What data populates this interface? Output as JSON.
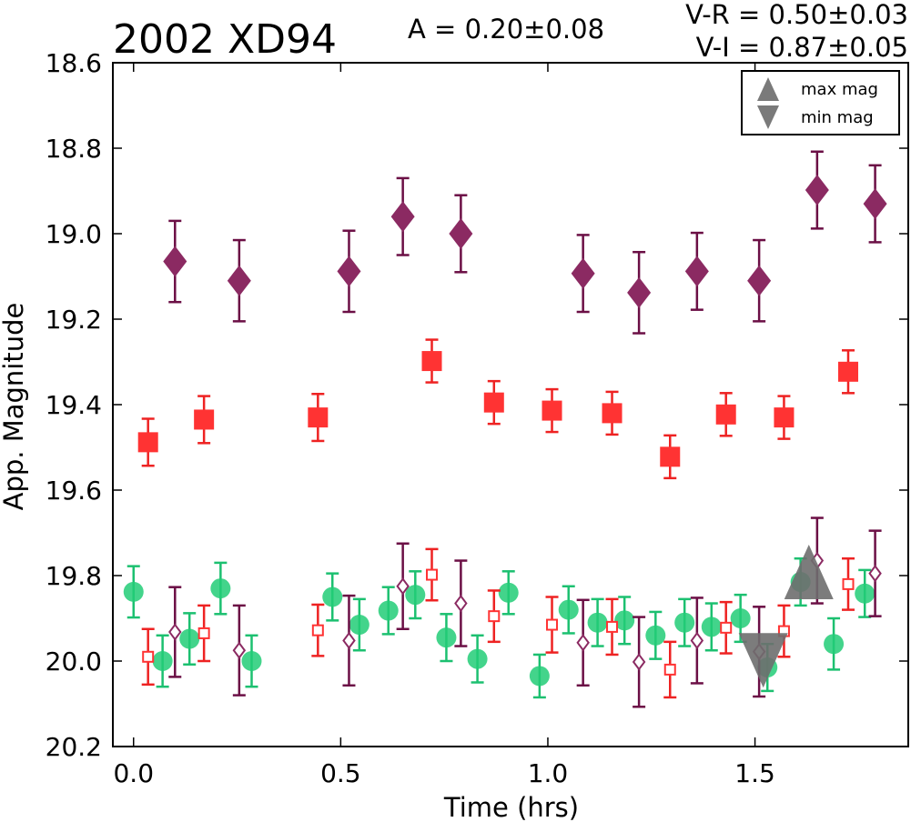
{
  "chart_data": {
    "type": "scatter",
    "title": "2002 XD94",
    "annotations": {
      "amplitude": "A  = 0.20±0.08",
      "v_r": "V-R = 0.50±0.03",
      "v_i": "V-I  = 0.87±0.05"
    },
    "xlabel": "Time (hrs)",
    "ylabel": "App. Magnitude",
    "xlim": [
      -0.05,
      1.87
    ],
    "ylim": [
      20.2,
      18.6
    ],
    "y_inverted": true,
    "x_ticks": [
      "0.0",
      "0.5",
      "1.0",
      "1.5"
    ],
    "x_tick_values": [
      0.0,
      0.5,
      1.0,
      1.5
    ],
    "y_ticks": [
      "18.6",
      "18.8",
      "19.0",
      "19.2",
      "19.4",
      "19.6",
      "19.8",
      "20.0",
      "20.2"
    ],
    "y_tick_values": [
      18.6,
      18.8,
      19.0,
      19.2,
      19.4,
      19.6,
      19.8,
      20.0,
      20.2
    ],
    "grid": false,
    "legend": {
      "placement": "top-right",
      "entries": [
        {
          "label": "max mag",
          "marker": "triangle-up"
        },
        {
          "label": "min mag",
          "marker": "triangle-down"
        }
      ]
    },
    "series": [
      {
        "marker": "diamond-filled",
        "color": "#8b2a62",
        "errcolor": "#6b0f45",
        "points": [
          {
            "x": 0.1,
            "y": 19.065,
            "err": 0.095
          },
          {
            "x": 0.255,
            "y": 19.11,
            "err": 0.095
          },
          {
            "x": 0.52,
            "y": 19.088,
            "err": 0.095
          },
          {
            "x": 0.65,
            "y": 18.96,
            "err": 0.09
          },
          {
            "x": 0.79,
            "y": 19.0,
            "err": 0.09
          },
          {
            "x": 1.085,
            "y": 19.093,
            "err": 0.09
          },
          {
            "x": 1.22,
            "y": 19.138,
            "err": 0.095
          },
          {
            "x": 1.36,
            "y": 19.088,
            "err": 0.09
          },
          {
            "x": 1.51,
            "y": 19.11,
            "err": 0.095
          },
          {
            "x": 1.65,
            "y": 18.898,
            "err": 0.09
          },
          {
            "x": 1.79,
            "y": 18.93,
            "err": 0.09
          }
        ]
      },
      {
        "marker": "square-filled",
        "color": "#ff3333",
        "errcolor": "#ee2222",
        "points": [
          {
            "x": 0.035,
            "y": 19.488,
            "err": 0.055
          },
          {
            "x": 0.17,
            "y": 19.435,
            "err": 0.055
          },
          {
            "x": 0.445,
            "y": 19.43,
            "err": 0.055
          },
          {
            "x": 0.72,
            "y": 19.298,
            "err": 0.05
          },
          {
            "x": 0.87,
            "y": 19.395,
            "err": 0.05
          },
          {
            "x": 1.01,
            "y": 19.414,
            "err": 0.05
          },
          {
            "x": 1.155,
            "y": 19.42,
            "err": 0.05
          },
          {
            "x": 1.295,
            "y": 19.522,
            "err": 0.05
          },
          {
            "x": 1.43,
            "y": 19.423,
            "err": 0.05
          },
          {
            "x": 1.57,
            "y": 19.43,
            "err": 0.05
          },
          {
            "x": 1.725,
            "y": 19.323,
            "err": 0.05
          }
        ]
      },
      {
        "marker": "circle-filled",
        "color": "#22cc77",
        "errcolor": "#1cc070",
        "points": [
          {
            "x": 0.0,
            "y": 19.838,
            "err": 0.06
          },
          {
            "x": 0.07,
            "y": 20.0,
            "err": 0.06
          },
          {
            "x": 0.135,
            "y": 19.948,
            "err": 0.06
          },
          {
            "x": 0.21,
            "y": 19.83,
            "err": 0.06
          },
          {
            "x": 0.285,
            "y": 20.0,
            "err": 0.06
          },
          {
            "x": 0.48,
            "y": 19.85,
            "err": 0.055
          },
          {
            "x": 0.545,
            "y": 19.915,
            "err": 0.06
          },
          {
            "x": 0.615,
            "y": 19.882,
            "err": 0.055
          },
          {
            "x": 0.68,
            "y": 19.845,
            "err": 0.055
          },
          {
            "x": 0.755,
            "y": 19.945,
            "err": 0.055
          },
          {
            "x": 0.83,
            "y": 19.995,
            "err": 0.055
          },
          {
            "x": 0.905,
            "y": 19.84,
            "err": 0.05
          },
          {
            "x": 0.98,
            "y": 20.035,
            "err": 0.05
          },
          {
            "x": 1.05,
            "y": 19.88,
            "err": 0.055
          },
          {
            "x": 1.12,
            "y": 19.91,
            "err": 0.055
          },
          {
            "x": 1.185,
            "y": 19.905,
            "err": 0.055
          },
          {
            "x": 1.26,
            "y": 19.94,
            "err": 0.055
          },
          {
            "x": 1.33,
            "y": 19.91,
            "err": 0.055
          },
          {
            "x": 1.395,
            "y": 19.92,
            "err": 0.055
          },
          {
            "x": 1.465,
            "y": 19.9,
            "err": 0.055
          },
          {
            "x": 1.53,
            "y": 20.015,
            "err": 0.055
          },
          {
            "x": 1.61,
            "y": 19.815,
            "err": 0.055
          },
          {
            "x": 1.69,
            "y": 19.96,
            "err": 0.06
          },
          {
            "x": 1.765,
            "y": 19.842,
            "err": 0.055
          }
        ]
      },
      {
        "marker": "square-open",
        "color": "#ff3333",
        "errcolor": "#ee2222",
        "points": [
          {
            "x": 0.035,
            "y": 19.99,
            "err": 0.065
          },
          {
            "x": 0.17,
            "y": 19.935,
            "err": 0.065
          },
          {
            "x": 0.445,
            "y": 19.928,
            "err": 0.06
          },
          {
            "x": 0.72,
            "y": 19.798,
            "err": 0.06
          },
          {
            "x": 0.87,
            "y": 19.895,
            "err": 0.06
          },
          {
            "x": 1.01,
            "y": 19.915,
            "err": 0.065
          },
          {
            "x": 1.155,
            "y": 19.92,
            "err": 0.065
          },
          {
            "x": 1.295,
            "y": 20.02,
            "err": 0.065
          },
          {
            "x": 1.43,
            "y": 19.922,
            "err": 0.06
          },
          {
            "x": 1.57,
            "y": 19.93,
            "err": 0.06
          },
          {
            "x": 1.725,
            "y": 19.82,
            "err": 0.06
          }
        ]
      },
      {
        "marker": "diamond-open",
        "color": "#8b2a62",
        "errcolor": "#6b0f45",
        "points": [
          {
            "x": 0.1,
            "y": 19.932,
            "err": 0.105
          },
          {
            "x": 0.255,
            "y": 19.975,
            "err": 0.105
          },
          {
            "x": 0.52,
            "y": 19.952,
            "err": 0.105
          },
          {
            "x": 0.65,
            "y": 19.825,
            "err": 0.1
          },
          {
            "x": 0.79,
            "y": 19.865,
            "err": 0.1
          },
          {
            "x": 1.085,
            "y": 19.957,
            "err": 0.1
          },
          {
            "x": 1.22,
            "y": 20.002,
            "err": 0.105
          },
          {
            "x": 1.36,
            "y": 19.952,
            "err": 0.1
          },
          {
            "x": 1.51,
            "y": 19.978,
            "err": 0.105
          },
          {
            "x": 1.65,
            "y": 19.765,
            "err": 0.1
          },
          {
            "x": 1.79,
            "y": 19.795,
            "err": 0.1
          }
        ]
      }
    ],
    "extrema": [
      {
        "label": "max mag",
        "marker": "triangle-up",
        "x": 1.63,
        "y": 19.8,
        "color": "#6e6e6e"
      },
      {
        "label": "min mag",
        "marker": "triangle-down",
        "x": 1.52,
        "y": 19.99,
        "color": "#6e6e6e"
      }
    ]
  }
}
